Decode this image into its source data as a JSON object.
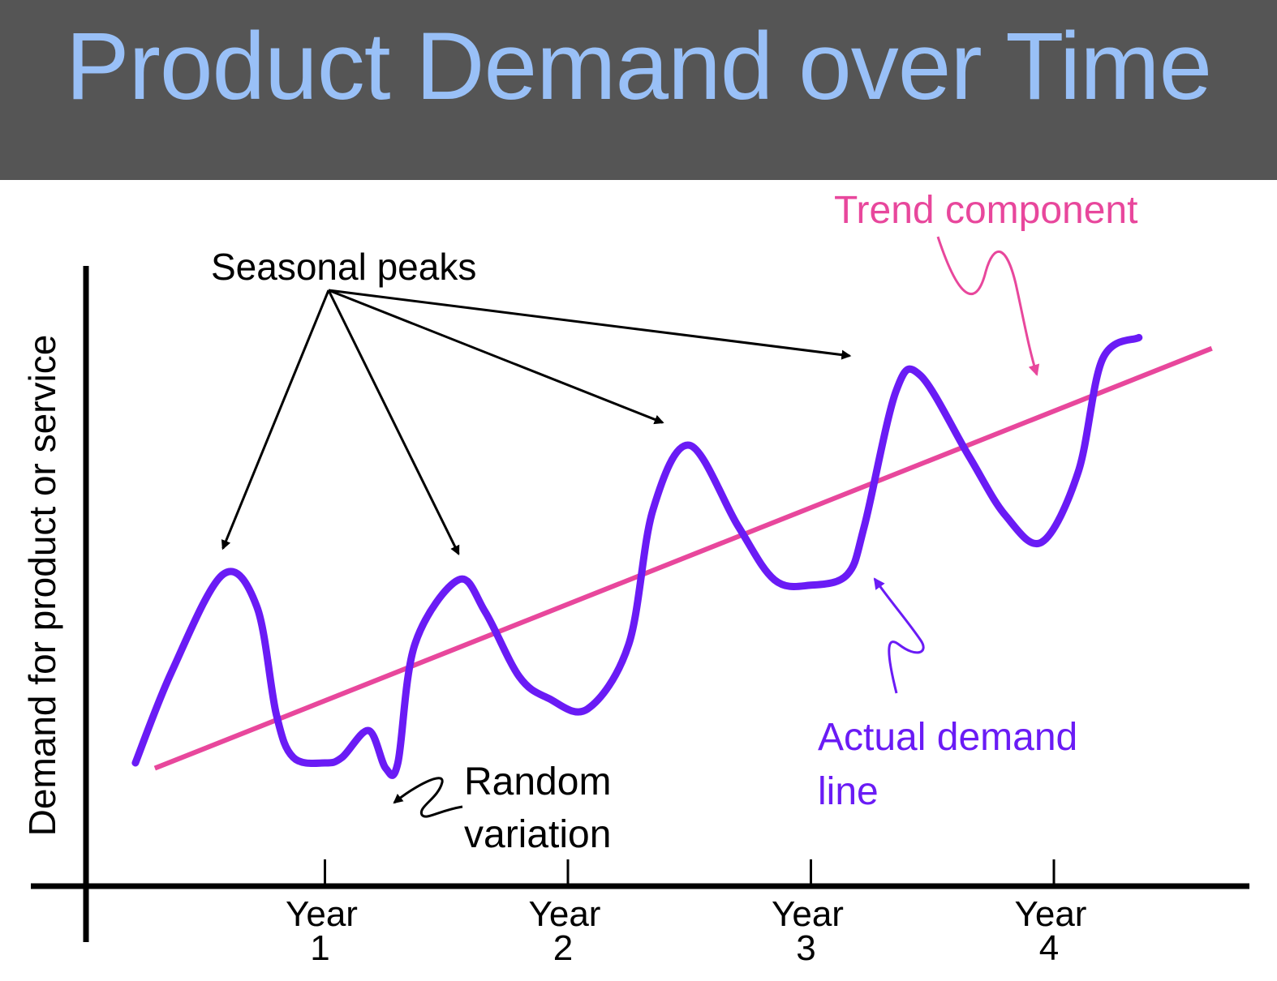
{
  "title": "Product Demand over Time",
  "colors": {
    "header_bg": "#555555",
    "title": "#99c0f7",
    "actual_demand": "#6a1bf5",
    "trend": "#e8479c",
    "annotation": "#000000"
  },
  "chart_data": {
    "type": "line",
    "title": "Product Demand over Time",
    "ylabel": "Demand for product or service",
    "xlabel": "",
    "x_ticks": [
      {
        "line1": "Year",
        "line2": "1",
        "x": 1.0
      },
      {
        "line1": "Year",
        "line2": "2",
        "x": 2.0
      },
      {
        "line1": "Year",
        "line2": "3",
        "x": 3.0
      },
      {
        "line1": "Year",
        "line2": "4",
        "x": 4.0
      }
    ],
    "xlim": [
      0.0,
      4.9
    ],
    "ylim": [
      0,
      100
    ],
    "grid": false,
    "series": [
      {
        "name": "Actual demand line",
        "values": [
          [
            0.22,
            11
          ],
          [
            0.37,
            28
          ],
          [
            0.58,
            46
          ],
          [
            0.72,
            40
          ],
          [
            0.8,
            20
          ],
          [
            0.87,
            12
          ],
          [
            1.0,
            11
          ],
          [
            1.07,
            12
          ],
          [
            1.18,
            17
          ],
          [
            1.25,
            10
          ],
          [
            1.3,
            11
          ],
          [
            1.37,
            33
          ],
          [
            1.55,
            45
          ],
          [
            1.66,
            39
          ],
          [
            1.8,
            27
          ],
          [
            1.92,
            23
          ],
          [
            2.08,
            21
          ],
          [
            2.25,
            33
          ],
          [
            2.35,
            58
          ],
          [
            2.5,
            70
          ],
          [
            2.7,
            55
          ],
          [
            2.85,
            45
          ],
          [
            3.0,
            44
          ],
          [
            3.15,
            46
          ],
          [
            3.22,
            55
          ],
          [
            3.35,
            80
          ],
          [
            3.45,
            83
          ],
          [
            3.65,
            68
          ],
          [
            3.8,
            57
          ],
          [
            3.95,
            52
          ],
          [
            4.1,
            65
          ],
          [
            4.2,
            86
          ],
          [
            4.35,
            90
          ]
        ]
      },
      {
        "name": "Trend component",
        "values": [
          [
            0.3,
            10
          ],
          [
            4.65,
            88
          ]
        ]
      }
    ],
    "annotations": [
      {
        "label": "Seasonal peaks",
        "targets": [
          [
            0.58,
            46
          ],
          [
            1.55,
            45
          ],
          [
            2.45,
            70
          ],
          [
            3.3,
            83
          ]
        ]
      },
      {
        "label": "Trend component",
        "target": [
          4.05,
          79
        ]
      },
      {
        "label_line1": "Actual demand",
        "label_line2": "line",
        "target": [
          3.28,
          45
        ]
      },
      {
        "label_line1": "Random",
        "label_line2": "variation",
        "target": [
          1.3,
          11
        ]
      }
    ]
  }
}
